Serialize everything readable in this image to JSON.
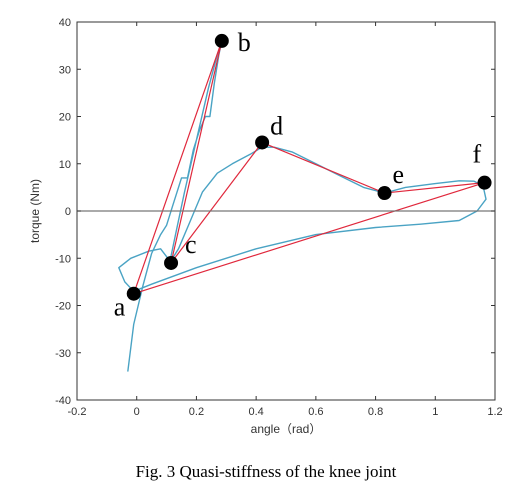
{
  "caption": "Fig. 3 Quasi-stiffness of the knee joint",
  "chart_data": {
    "type": "line",
    "xlabel": "angle（rad）",
    "ylabel": "torque (Nm)",
    "xlim": [
      -0.2,
      1.2
    ],
    "ylim": [
      -40,
      40
    ],
    "xticks": [
      -0.2,
      0,
      0.2,
      0.4,
      0.6,
      0.8,
      1,
      1.2
    ],
    "xtick_labels": [
      "-0.2",
      "0",
      "0.2",
      "0.4",
      "0.6",
      "0.8",
      "1",
      "1.2"
    ],
    "yticks": [
      -40,
      -30,
      -20,
      -10,
      0,
      10,
      20,
      30,
      40
    ],
    "ytick_labels": [
      "-40",
      "-30",
      "-20",
      "-10",
      "0",
      "10",
      "20",
      "30",
      "40"
    ],
    "zero_line": 0,
    "grid": false,
    "colors": {
      "measured": "#4aa3c4",
      "fit": "#e0283c",
      "points": "#000000",
      "zero_line": "#777777"
    },
    "points": [
      {
        "label": "a",
        "x": -0.01,
        "y": -17.5
      },
      {
        "label": "b",
        "x": 0.285,
        "y": 36
      },
      {
        "label": "c",
        "x": 0.115,
        "y": -11
      },
      {
        "label": "d",
        "x": 0.42,
        "y": 14.5
      },
      {
        "label": "e",
        "x": 0.83,
        "y": 3.8
      },
      {
        "label": "f",
        "x": 1.165,
        "y": 6
      }
    ],
    "fit_segments": [
      [
        [
          -0.01,
          -17.5
        ],
        [
          0.285,
          36
        ]
      ],
      [
        [
          0.285,
          36
        ],
        [
          0.115,
          -11
        ]
      ],
      [
        [
          0.115,
          -11
        ],
        [
          0.42,
          14.5
        ]
      ],
      [
        [
          0.42,
          14.5
        ],
        [
          0.83,
          3.8
        ]
      ],
      [
        [
          0.83,
          3.8
        ],
        [
          1.165,
          6
        ]
      ],
      [
        [
          1.165,
          6
        ],
        [
          -0.01,
          -17.5
        ]
      ]
    ],
    "measured_curve": [
      [
        -0.03,
        -34
      ],
      [
        -0.01,
        -24
      ],
      [
        0.02,
        -16
      ],
      [
        0.05,
        -9
      ],
      [
        0.08,
        -5
      ],
      [
        0.1,
        -3
      ],
      [
        0.12,
        1
      ],
      [
        0.14,
        5
      ],
      [
        0.15,
        7
      ],
      [
        0.17,
        7
      ],
      [
        0.19,
        13
      ],
      [
        0.21,
        17
      ],
      [
        0.23,
        20
      ],
      [
        0.245,
        20
      ],
      [
        0.26,
        27
      ],
      [
        0.275,
        33
      ],
      [
        0.285,
        36
      ],
      [
        0.27,
        33
      ],
      [
        0.24,
        26
      ],
      [
        0.2,
        15
      ],
      [
        0.16,
        4
      ],
      [
        0.13,
        -5
      ],
      [
        0.11,
        -11
      ],
      [
        0.14,
        -8
      ],
      [
        0.18,
        -2
      ],
      [
        0.22,
        4
      ],
      [
        0.27,
        8
      ],
      [
        0.32,
        10
      ],
      [
        0.38,
        12
      ],
      [
        0.42,
        13.5
      ],
      [
        0.46,
        13.5
      ],
      [
        0.52,
        12.5
      ],
      [
        0.6,
        10
      ],
      [
        0.68,
        7.5
      ],
      [
        0.76,
        5
      ],
      [
        0.83,
        3.8
      ],
      [
        0.9,
        5
      ],
      [
        1.0,
        5.8
      ],
      [
        1.08,
        6.4
      ],
      [
        1.13,
        6.3
      ],
      [
        1.16,
        5.3
      ],
      [
        1.17,
        2.5
      ],
      [
        1.14,
        0
      ],
      [
        1.08,
        -2
      ],
      [
        0.95,
        -2.8
      ],
      [
        0.8,
        -3.5
      ],
      [
        0.6,
        -5
      ],
      [
        0.4,
        -8
      ],
      [
        0.2,
        -12
      ],
      [
        0.05,
        -15.5
      ],
      [
        -0.01,
        -17
      ],
      [
        -0.04,
        -15
      ],
      [
        -0.06,
        -12
      ],
      [
        -0.02,
        -10
      ],
      [
        0.04,
        -8.5
      ],
      [
        0.08,
        -8
      ],
      [
        0.11,
        -10.5
      ]
    ]
  }
}
